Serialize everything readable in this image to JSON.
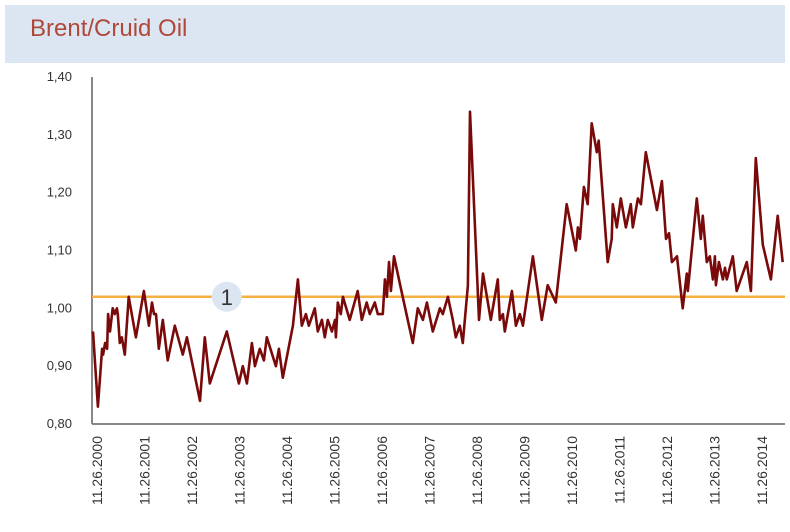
{
  "header": {
    "title": "Brent/Cruid Oil"
  },
  "chart_data": {
    "type": "line",
    "title": "Brent/Cruid Oil",
    "xlabel": "",
    "ylabel": "",
    "ylim": [
      0.8,
      1.4
    ],
    "y_ticks": [
      "0,80",
      "0,90",
      "1,00",
      "1,10",
      "1,20",
      "1,30",
      "1,40"
    ],
    "y_tick_values": [
      0.8,
      0.9,
      1.0,
      1.1,
      1.2,
      1.3,
      1.4
    ],
    "x_ticks": [
      "11.26.2000",
      "11.26.2001",
      "11.26.2002",
      "11.26.2003",
      "11.26.2004",
      "11.26.2005",
      "11.26.2006",
      "11.26.2007",
      "11.26.2008",
      "11.26.2009",
      "11.26.2010",
      "11.26.2011",
      "11.26.2012",
      "11.26.2013",
      "11.26.2014"
    ],
    "x_tick_dates": [
      "2000-11-26",
      "2001-11-26",
      "2002-11-26",
      "2003-11-26",
      "2004-11-26",
      "2005-11-26",
      "2006-11-26",
      "2007-11-26",
      "2008-11-26",
      "2009-11-26",
      "2010-11-26",
      "2011-11-26",
      "2012-11-26",
      "2013-11-26",
      "2014-11-26"
    ],
    "grid": false,
    "line_color": "#7a0a0a",
    "reference_line": {
      "value": 1.02,
      "color": "#f5b041",
      "label": "1",
      "label_date": "2003-08-21"
    },
    "series": [
      {
        "x": [
          "2000-10-26",
          "2000-12-03",
          "2001-01-04",
          "2001-01-12",
          "2001-01-27",
          "2001-02-12",
          "2001-02-19",
          "2001-03-06",
          "2001-03-27",
          "2001-04-12",
          "2001-04-28",
          "2001-05-05",
          "2001-05-20",
          "2001-06-05",
          "2001-06-28",
          "2001-07-28",
          "2001-09-21",
          "2001-11-22",
          "2001-12-30",
          "2002-01-23",
          "2002-02-07",
          "2002-02-23",
          "2002-03-16",
          "2002-04-16",
          "2002-05-24",
          "2002-07-17",
          "2002-09-17",
          "2002-10-18",
          "2003-01-27",
          "2003-03-05",
          "2003-04-12",
          "2003-08-21",
          "2003-11-22",
          "2003-12-22",
          "2004-01-23",
          "2004-03-01",
          "2004-03-24",
          "2004-05-01",
          "2004-06-01",
          "2004-06-24",
          "2004-09-02",
          "2004-09-25",
          "2004-10-25",
          "2005-01-10",
          "2005-02-18",
          "2005-03-20",
          "2005-04-20",
          "2005-05-13",
          "2005-06-28",
          "2005-07-21",
          "2005-08-21",
          "2005-09-13",
          "2005-10-06",
          "2005-11-06",
          "2005-11-30",
          "2005-12-07",
          "2005-12-22",
          "2006-01-14",
          "2006-01-30",
          "2006-03-23",
          "2006-05-24",
          "2006-06-24",
          "2006-08-01",
          "2006-08-25",
          "2006-10-02",
          "2006-10-25",
          "2006-12-03",
          "2006-12-19",
          "2007-01-03",
          "2007-01-19",
          "2007-02-03",
          "2007-02-27",
          "2007-05-05",
          "2007-07-21",
          "2007-08-29",
          "2007-10-07",
          "2007-11-07",
          "2007-12-22",
          "2008-02-15",
          "2008-03-08",
          "2008-04-16",
          "2008-05-24",
          "2008-06-16",
          "2008-07-17",
          "2008-08-09",
          "2008-09-17",
          "2008-10-03",
          "2008-12-11",
          "2009-01-11",
          "2009-03-12",
          "2009-05-05",
          "2009-05-20",
          "2009-06-13",
          "2009-06-28",
          "2009-08-21",
          "2009-09-21",
          "2009-10-22",
          "2009-11-14",
          "2010-01-30",
          "2010-04-08",
          "2010-05-24",
          "2010-07-25",
          "2010-10-17",
          "2010-12-26",
          "2011-01-11",
          "2011-01-26",
          "2011-02-26",
          "2011-03-27",
          "2011-04-27",
          "2011-06-05",
          "2011-06-20",
          "2011-08-28",
          "2011-09-28",
          "2011-10-06",
          "2011-11-06",
          "2011-12-07",
          "2012-01-15",
          "2012-02-22",
          "2012-03-08",
          "2012-04-16",
          "2012-05-09",
          "2012-06-16",
          "2012-09-09",
          "2012-10-18",
          "2012-11-18",
          "2012-12-11",
          "2013-01-03",
          "2013-02-11",
          "2013-03-27",
          "2013-04-27",
          "2013-05-05",
          "2013-07-13",
          "2013-08-13",
          "2013-08-28",
          "2013-09-28",
          "2013-10-21",
          "2013-11-14",
          "2013-11-29",
          "2013-12-07",
          "2013-12-30",
          "2014-01-30",
          "2014-02-15",
          "2014-03-01",
          "2014-04-16",
          "2014-05-16",
          "2014-08-02",
          "2014-09-02",
          "2014-10-10",
          "2014-12-03",
          "2015-02-03",
          "2015-03-27",
          "2015-05-05"
        ],
        "values": [
          0.96,
          0.83,
          0.93,
          0.92,
          0.94,
          0.93,
          0.99,
          0.96,
          1.0,
          0.99,
          1.0,
          0.99,
          0.94,
          0.95,
          0.92,
          1.02,
          0.95,
          1.03,
          0.97,
          1.01,
          0.99,
          0.99,
          0.93,
          0.98,
          0.91,
          0.97,
          0.92,
          0.95,
          0.84,
          0.95,
          0.87,
          0.96,
          0.87,
          0.9,
          0.87,
          0.94,
          0.9,
          0.93,
          0.91,
          0.95,
          0.9,
          0.93,
          0.88,
          0.97,
          1.05,
          0.97,
          0.99,
          0.97,
          1.0,
          0.96,
          0.98,
          0.95,
          0.98,
          0.96,
          0.98,
          0.95,
          1.01,
          0.99,
          1.02,
          0.98,
          1.03,
          0.98,
          1.01,
          0.99,
          1.01,
          0.99,
          0.99,
          1.05,
          1.02,
          1.08,
          1.03,
          1.09,
          1.02,
          0.94,
          1.0,
          0.98,
          1.01,
          0.96,
          1.0,
          0.99,
          1.02,
          0.98,
          0.95,
          0.97,
          0.94,
          1.04,
          1.34,
          0.98,
          1.06,
          0.98,
          1.05,
          0.98,
          0.99,
          0.96,
          1.03,
          0.97,
          0.99,
          0.97,
          1.09,
          0.98,
          1.04,
          1.01,
          1.18,
          1.1,
          1.14,
          1.12,
          1.21,
          1.18,
          1.32,
          1.27,
          1.29,
          1.08,
          1.12,
          1.18,
          1.14,
          1.19,
          1.14,
          1.18,
          1.14,
          1.19,
          1.18,
          1.27,
          1.17,
          1.22,
          1.12,
          1.13,
          1.08,
          1.09,
          1.0,
          1.06,
          1.03,
          1.19,
          1.12,
          1.16,
          1.08,
          1.09,
          1.05,
          1.09,
          1.04,
          1.08,
          1.05,
          1.07,
          1.05,
          1.09,
          1.03,
          1.08,
          1.03,
          1.26,
          1.11,
          1.05,
          1.16,
          1.08
        ]
      }
    ]
  }
}
